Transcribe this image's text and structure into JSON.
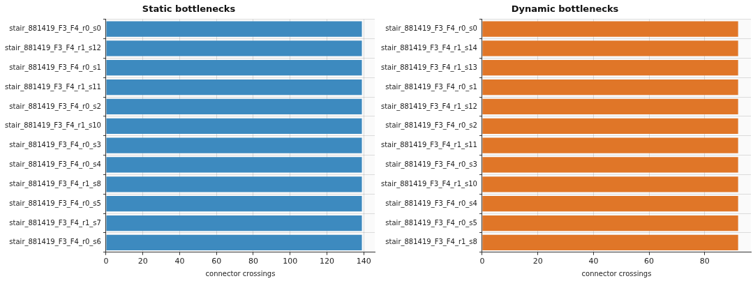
{
  "chart_data": [
    {
      "type": "bar",
      "orientation": "horizontal",
      "title": "Static bottlenecks",
      "xlabel": "connector crossings",
      "categories": [
        "stair_881419_F3_F4_r0_s0",
        "stair_881419_F3_F4_r1_s12",
        "stair_881419_F3_F4_r0_s1",
        "stair_881419_F3_F4_r1_s11",
        "stair_881419_F3_F4_r0_s2",
        "stair_881419_F3_F4_r1_s10",
        "stair_881419_F3_F4_r0_s3",
        "stair_881419_F3_F4_r0_s4",
        "stair_881419_F3_F4_r1_s8",
        "stair_881419_F3_F4_r0_s5",
        "stair_881419_F3_F4_r1_s7",
        "stair_881419_F3_F4_r0_s6"
      ],
      "values": [
        139,
        139,
        139,
        139,
        139,
        139,
        139,
        139,
        139,
        139,
        139,
        139
      ],
      "color": "#3d8abf",
      "xlim": [
        0,
        146
      ],
      "xticks": [
        0,
        20,
        40,
        60,
        80,
        100,
        120,
        140
      ],
      "grid": true
    },
    {
      "type": "bar",
      "orientation": "horizontal",
      "title": "Dynamic bottlenecks",
      "xlabel": "connector crossings",
      "categories": [
        "stair_881419_F3_F4_r0_s0",
        "stair_881419_F3_F4_r1_s14",
        "stair_881419_F3_F4_r1_s13",
        "stair_881419_F3_F4_r0_s1",
        "stair_881419_F3_F4_r1_s12",
        "stair_881419_F3_F4_r0_s2",
        "stair_881419_F3_F4_r1_s11",
        "stair_881419_F3_F4_r0_s3",
        "stair_881419_F3_F4_r1_s10",
        "stair_881419_F3_F4_r0_s4",
        "stair_881419_F3_F4_r0_s5",
        "stair_881419_F3_F4_r1_s8"
      ],
      "values": [
        92,
        92,
        92,
        92,
        92,
        92,
        92,
        92,
        92,
        92,
        92,
        92
      ],
      "color": "#e07628",
      "xlim": [
        0,
        96.6
      ],
      "xticks": [
        0,
        20,
        40,
        60,
        80
      ],
      "grid": true
    }
  ]
}
